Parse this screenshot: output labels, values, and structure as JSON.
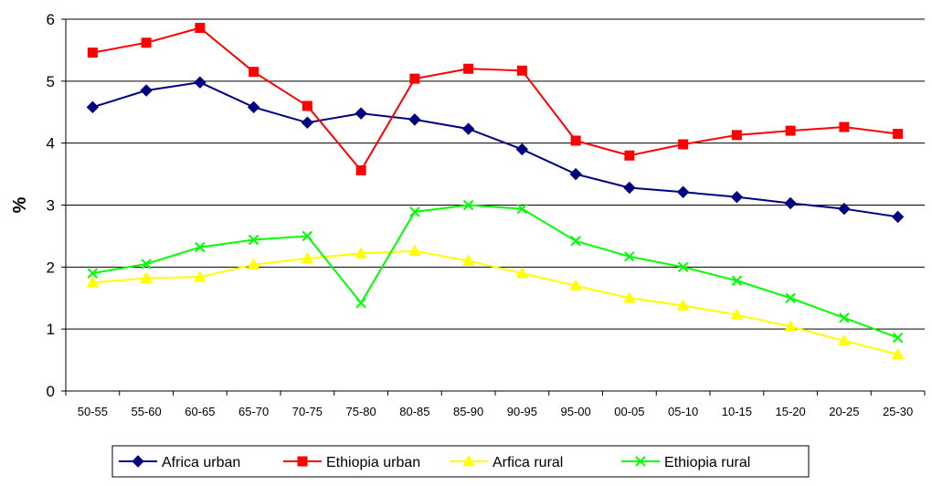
{
  "chart_data": {
    "type": "line",
    "title": "",
    "xlabel": "",
    "ylabel": "%",
    "ylim": [
      0,
      6
    ],
    "yticks": [
      0,
      1,
      2,
      3,
      4,
      5,
      6
    ],
    "grid": "horizontal",
    "legend_position": "bottom",
    "categories": [
      "50-55",
      "55-60",
      "60-65",
      "65-70",
      "70-75",
      "75-80",
      "80-85",
      "85-90",
      "90-95",
      "95-00",
      "00-05",
      "05-10",
      "10-15",
      "15-20",
      "20-25",
      "25-30"
    ],
    "series": [
      {
        "name": "Africa urban",
        "color": "#000080",
        "marker": "diamond",
        "values": [
          4.58,
          4.85,
          4.98,
          4.58,
          4.33,
          4.48,
          4.38,
          4.23,
          3.9,
          3.5,
          3.28,
          3.21,
          3.13,
          3.03,
          2.94,
          2.81
        ]
      },
      {
        "name": "Ethiopia urban",
        "color": "#ff0000",
        "marker": "square",
        "values": [
          5.46,
          5.62,
          5.86,
          5.15,
          4.6,
          3.56,
          5.04,
          5.2,
          5.17,
          4.04,
          3.8,
          3.98,
          4.13,
          4.2,
          4.26,
          4.15
        ]
      },
      {
        "name": "Arfica rural",
        "color": "#ffff00",
        "marker": "triangle",
        "values": [
          1.75,
          1.82,
          1.84,
          2.04,
          2.14,
          2.22,
          2.26,
          2.1,
          1.9,
          1.7,
          1.5,
          1.38,
          1.23,
          1.04,
          0.81,
          0.59
        ]
      },
      {
        "name": "Ethiopia rural",
        "color": "#00ff00",
        "marker": "x",
        "values": [
          1.9,
          2.05,
          2.32,
          2.44,
          2.5,
          1.42,
          2.89,
          3.0,
          2.94,
          2.42,
          2.17,
          2.0,
          1.78,
          1.5,
          1.18,
          0.86
        ]
      }
    ]
  }
}
